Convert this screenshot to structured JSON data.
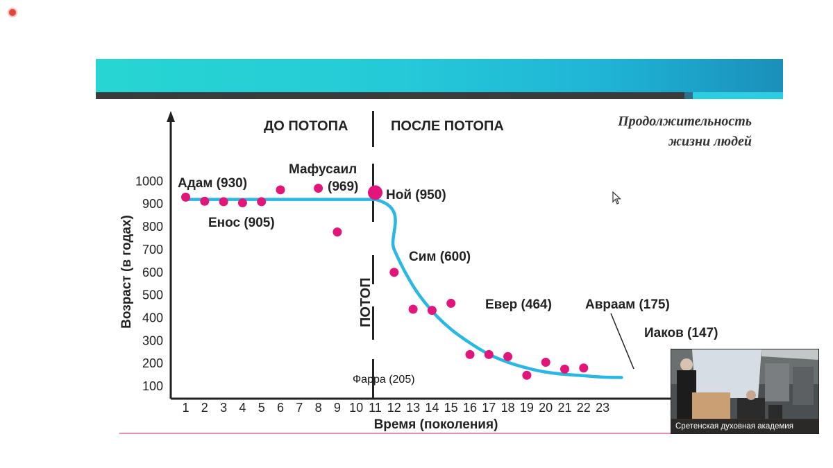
{
  "slide": {
    "subtitle_line1": "Продолжительность",
    "subtitle_line2": "жизни людей"
  },
  "video": {
    "caption": "Сретенская духовная академия"
  },
  "chart_data": {
    "type": "scatter",
    "ylabel": "Возраст (в годах)",
    "xlabel": "Время (поколения)",
    "era_labels": [
      "ДО ПОТОПА",
      "ПОСЛЕ ПОТОПА"
    ],
    "flood_label": "ПОТОП",
    "flood_generation": 11,
    "ylim": [
      100,
      1000
    ],
    "yticks": [
      1000,
      900,
      800,
      700,
      600,
      500,
      400,
      300,
      200,
      100
    ],
    "xticks": [
      1,
      2,
      3,
      4,
      5,
      6,
      7,
      8,
      9,
      10,
      11,
      12,
      13,
      14,
      15,
      16,
      17,
      18,
      19,
      20,
      21,
      22,
      23
    ],
    "grid": false,
    "points": [
      {
        "x": 1,
        "y": 930
      },
      {
        "x": 2,
        "y": 912
      },
      {
        "x": 3,
        "y": 910
      },
      {
        "x": 4,
        "y": 905
      },
      {
        "x": 5,
        "y": 910
      },
      {
        "x": 6,
        "y": 962
      },
      {
        "x": 8,
        "y": 969
      },
      {
        "x": 9,
        "y": 777
      },
      {
        "x": 11,
        "y": 950
      },
      {
        "x": 12,
        "y": 600
      },
      {
        "x": 13,
        "y": 438
      },
      {
        "x": 14,
        "y": 433
      },
      {
        "x": 15,
        "y": 464
      },
      {
        "x": 16,
        "y": 239
      },
      {
        "x": 17,
        "y": 239
      },
      {
        "x": 18,
        "y": 230
      },
      {
        "x": 19,
        "y": 148
      },
      {
        "x": 20,
        "y": 205
      },
      {
        "x": 21,
        "y": 175
      },
      {
        "x": 22,
        "y": 180
      }
    ],
    "trend": [
      {
        "x": 1,
        "y": 920
      },
      {
        "x": 11,
        "y": 920
      },
      {
        "x": 12,
        "y": 700
      },
      {
        "x": 13,
        "y": 540
      },
      {
        "x": 14,
        "y": 430
      },
      {
        "x": 15,
        "y": 350
      },
      {
        "x": 16,
        "y": 290
      },
      {
        "x": 17,
        "y": 240
      },
      {
        "x": 18,
        "y": 205
      },
      {
        "x": 19,
        "y": 180
      },
      {
        "x": 20,
        "y": 162
      },
      {
        "x": 21,
        "y": 152
      },
      {
        "x": 22,
        "y": 146
      },
      {
        "x": 23,
        "y": 140
      },
      {
        "x": 24,
        "y": 138
      }
    ],
    "annotations": [
      {
        "text": "Адам (930)",
        "x": 1,
        "y": 930
      },
      {
        "text": "Енос (905)",
        "x": 3,
        "y": 905
      },
      {
        "text": "Мафусаил",
        "x": 8,
        "y": 969
      },
      {
        "text": "(969)",
        "x": 8,
        "y": 969
      },
      {
        "text": "Ной (950)",
        "x": 11,
        "y": 950
      },
      {
        "text": "Сим (600)",
        "x": 12,
        "y": 600
      },
      {
        "text": "Евер (464)",
        "x": 15,
        "y": 464
      },
      {
        "text": "Авраам (175)",
        "x": 21,
        "y": 175
      },
      {
        "text": "Иаков (147)",
        "x": 23,
        "y": 147
      },
      {
        "text": "Фарра (205)",
        "x": 11,
        "y": 205
      }
    ],
    "colors": {
      "points": "#e2167a",
      "trend": "#29b7e3",
      "axis": "#222222"
    }
  }
}
